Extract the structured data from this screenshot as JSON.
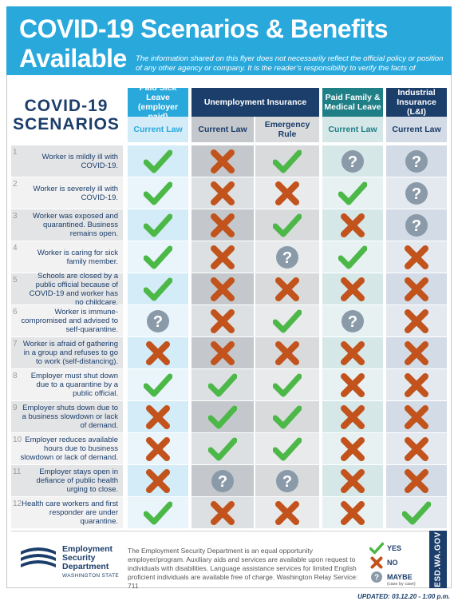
{
  "header": {
    "title": "COVID-19 Scenarios & Benefits Available",
    "disclaimer": "The information shared on this flyer does not necessarily reflect the official policy or position of any other agency or company. It is the reader’s responsibility to verify the facts of coverage."
  },
  "scenarios_title": {
    "line1": "COVID-19",
    "line2": "SCENARIOS"
  },
  "columns": {
    "paid_sick_leave": "Paid Sick Leave (employer paid)",
    "unemployment": "Unemployment Insurance",
    "paid_family": "Paid Family & Medical Leave",
    "industrial": "Industrial Insurance (L&I)",
    "sub_current_law": "Current Law",
    "sub_emergency_rule": "Emergency Rule"
  },
  "colors": {
    "header_blue": "#29a8dc",
    "navy": "#1b3e6b",
    "teal": "#1f7f86",
    "green_check": "#4cb848",
    "orange_x": "#c2531c",
    "question_gray": "#8a9aa8"
  },
  "rows": [
    {
      "num": "1",
      "text": "Worker is mildly ill with COVID-19.",
      "values": [
        "yes",
        "no",
        "yes",
        "maybe",
        "maybe"
      ]
    },
    {
      "num": "2",
      "text": "Worker is severely ill with COVID-19.",
      "values": [
        "yes",
        "no",
        "no",
        "yes",
        "maybe"
      ]
    },
    {
      "num": "3",
      "text": "Worker was exposed and quarantined. Business remains open.",
      "values": [
        "yes",
        "no",
        "yes",
        "no",
        "maybe"
      ]
    },
    {
      "num": "4",
      "text": "Worker is caring for sick family member.",
      "values": [
        "yes",
        "no",
        "maybe",
        "yes",
        "no"
      ]
    },
    {
      "num": "5",
      "text": "Schools are closed by a public official because of COVID-19 and worker has no childcare.",
      "values": [
        "yes",
        "no",
        "no",
        "no",
        "no"
      ]
    },
    {
      "num": "6",
      "text": "Worker is immune-compromised and advised to self-quarantine.",
      "values": [
        "maybe",
        "no",
        "yes",
        "maybe",
        "no"
      ]
    },
    {
      "num": "7",
      "text": "Worker is afraid of gathering in a group and refuses to go to work (self-distancing).",
      "values": [
        "no",
        "no",
        "no",
        "no",
        "no"
      ]
    },
    {
      "num": "8",
      "text": "Employer must shut down due to a quarantine by a public official.",
      "values": [
        "yes",
        "yes",
        "yes",
        "no",
        "no"
      ]
    },
    {
      "num": "9",
      "text": "Employer shuts down due to a business slowdown or lack of demand.",
      "values": [
        "no",
        "yes",
        "yes",
        "no",
        "no"
      ]
    },
    {
      "num": "10",
      "text": "Employer reduces available hours due to business slowdown or lack of demand.",
      "values": [
        "no",
        "yes",
        "yes",
        "no",
        "no"
      ]
    },
    {
      "num": "11",
      "text": "Employer stays open in defiance of public health urging to close.",
      "values": [
        "no",
        "maybe",
        "maybe",
        "no",
        "no"
      ]
    },
    {
      "num": "12",
      "text": "Health care workers and first responder are under quarantine.",
      "values": [
        "yes",
        "no",
        "no",
        "no",
        "yes"
      ]
    }
  ],
  "footer": {
    "logo_line1": "Employment",
    "logo_line2": "Security",
    "logo_line3": "Department",
    "logo_sub": "WASHINGTON STATE",
    "text": "The Employment Security Department is an equal opportunity employer/program. Auxiliary aids and services are available upon request to individuals with disabilities. Language assistance services for limited English proficient individuals are available free of charge. Washington Relay Service: 711",
    "legend_yes": "YES",
    "legend_no": "NO",
    "legend_maybe": "MAYBE",
    "legend_maybe_sub": "(case by case)",
    "vertical": "ESD.WA.GOV",
    "updated": "UPDATED: 03.12.20 - 1:00 p.m."
  }
}
